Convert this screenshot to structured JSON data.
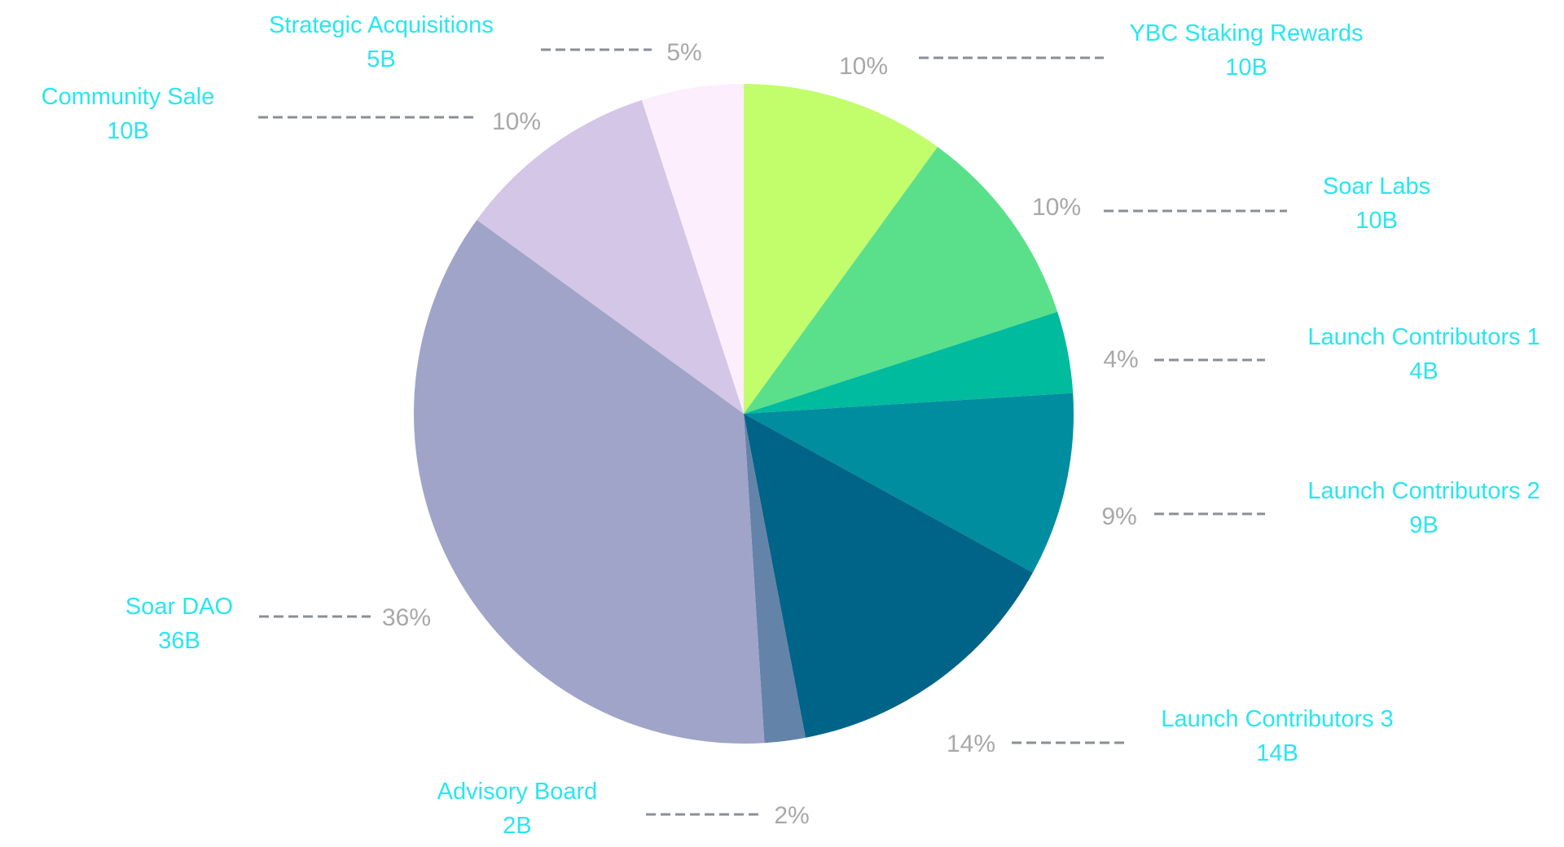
{
  "chart_data": {
    "type": "pie",
    "start_angle_deg": 0,
    "direction": "clockwise",
    "slices": [
      {
        "label": "YBC Staking Rewards",
        "amount": "10B",
        "percent_label": "10%",
        "value": 10,
        "color": "#c2fd6c"
      },
      {
        "label": "Soar Labs",
        "amount": "10B",
        "percent_label": "10%",
        "value": 10,
        "color": "#5ae08a"
      },
      {
        "label": "Launch Contributors 1",
        "amount": "4B",
        "percent_label": "4%",
        "value": 4,
        "color": "#00bb9e"
      },
      {
        "label": "Launch Contributors 2",
        "amount": "9B",
        "percent_label": "9%",
        "value": 9,
        "color": "#008d9f"
      },
      {
        "label": "Launch Contributors 3",
        "amount": "14B",
        "percent_label": "14%",
        "value": 14,
        "color": "#006388"
      },
      {
        "label": "Advisory Board",
        "amount": "2B",
        "percent_label": "2%",
        "value": 2,
        "color": "#6483a8"
      },
      {
        "label": "Soar DAO",
        "amount": "36B",
        "percent_label": "36%",
        "value": 36,
        "color": "#9fa4c8"
      },
      {
        "label": "Community Sale",
        "amount": "10B",
        "percent_label": "10%",
        "value": 10,
        "color": "#d4c6e6"
      },
      {
        "label": "Strategic Acquisitions",
        "amount": "5B",
        "percent_label": "5%",
        "value": 5,
        "color": "#fdeefe"
      }
    ]
  }
}
